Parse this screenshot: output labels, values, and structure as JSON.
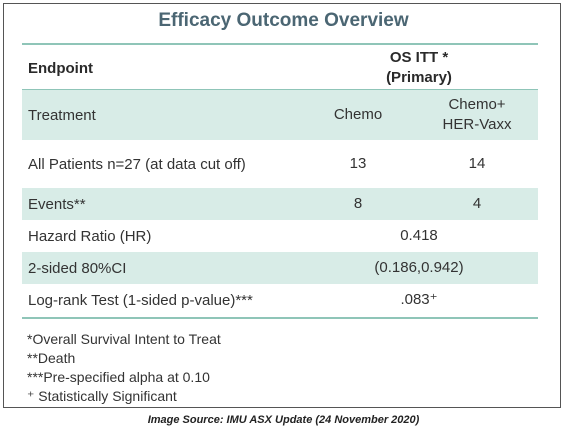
{
  "title": "Efficacy Outcome Overview",
  "header": {
    "endpoint": "Endpoint",
    "column": [
      "OS ITT *",
      "(Primary)"
    ]
  },
  "table": {
    "rows": [
      {
        "label": "Treatment",
        "cells": [
          [
            "Chemo"
          ],
          [
            "Chemo+",
            "HER-Vaxx"
          ]
        ]
      },
      {
        "label": "All Patients n=27 (at data cut off)",
        "cells": [
          [
            "13"
          ],
          [
            "14"
          ]
        ]
      },
      {
        "label": "Events**",
        "cells": [
          [
            "8"
          ],
          [
            "4"
          ]
        ]
      },
      {
        "label": "Hazard Ratio (HR)",
        "cells": [
          [
            "0.418"
          ]
        ]
      },
      {
        "label": "2-sided 80%CI",
        "cells": [
          [
            "(0.186,0.942)"
          ]
        ]
      },
      {
        "label": "Log-rank Test (1-sided p-value)***",
        "cells": [
          [
            ".083⁺"
          ]
        ]
      }
    ]
  },
  "footnotes": [
    "*Overall Survival Intent to Treat",
    "**Death",
    "***Pre-specified alpha at 0.10",
    "⁺ Statistically Significant"
  ],
  "caption": "Image Source: IMU ASX Update (24 November 2020)"
}
